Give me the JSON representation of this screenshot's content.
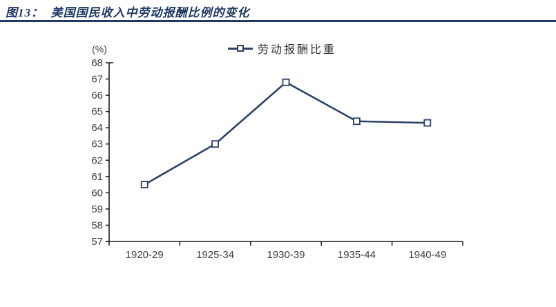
{
  "page": {
    "figure_title": "图13：  美国国民收入中劳动报酬比例的变化",
    "accent_color": "#1f3864"
  },
  "chart_data": {
    "type": "line",
    "title": "图13：美国国民收入中劳动报酬比例的变化",
    "unit_label": "(%)",
    "categories": [
      "1920-29",
      "1925-34",
      "1930-39",
      "1935-44",
      "1940-49"
    ],
    "series": [
      {
        "name": "劳动报酬比重",
        "values": [
          60.5,
          63.0,
          66.8,
          64.4,
          64.3
        ]
      }
    ],
    "legend": {
      "label": "劳动报酬比重",
      "position": "top-center",
      "marker": "hollow-square-on-line"
    },
    "ylim": [
      57,
      68
    ],
    "ytick_step": 1,
    "grid": false,
    "line_color": "#2b4166",
    "marker_fill": "#ffffff",
    "axis_color": "#1a1a1a",
    "tick_label_color": "#404040"
  }
}
